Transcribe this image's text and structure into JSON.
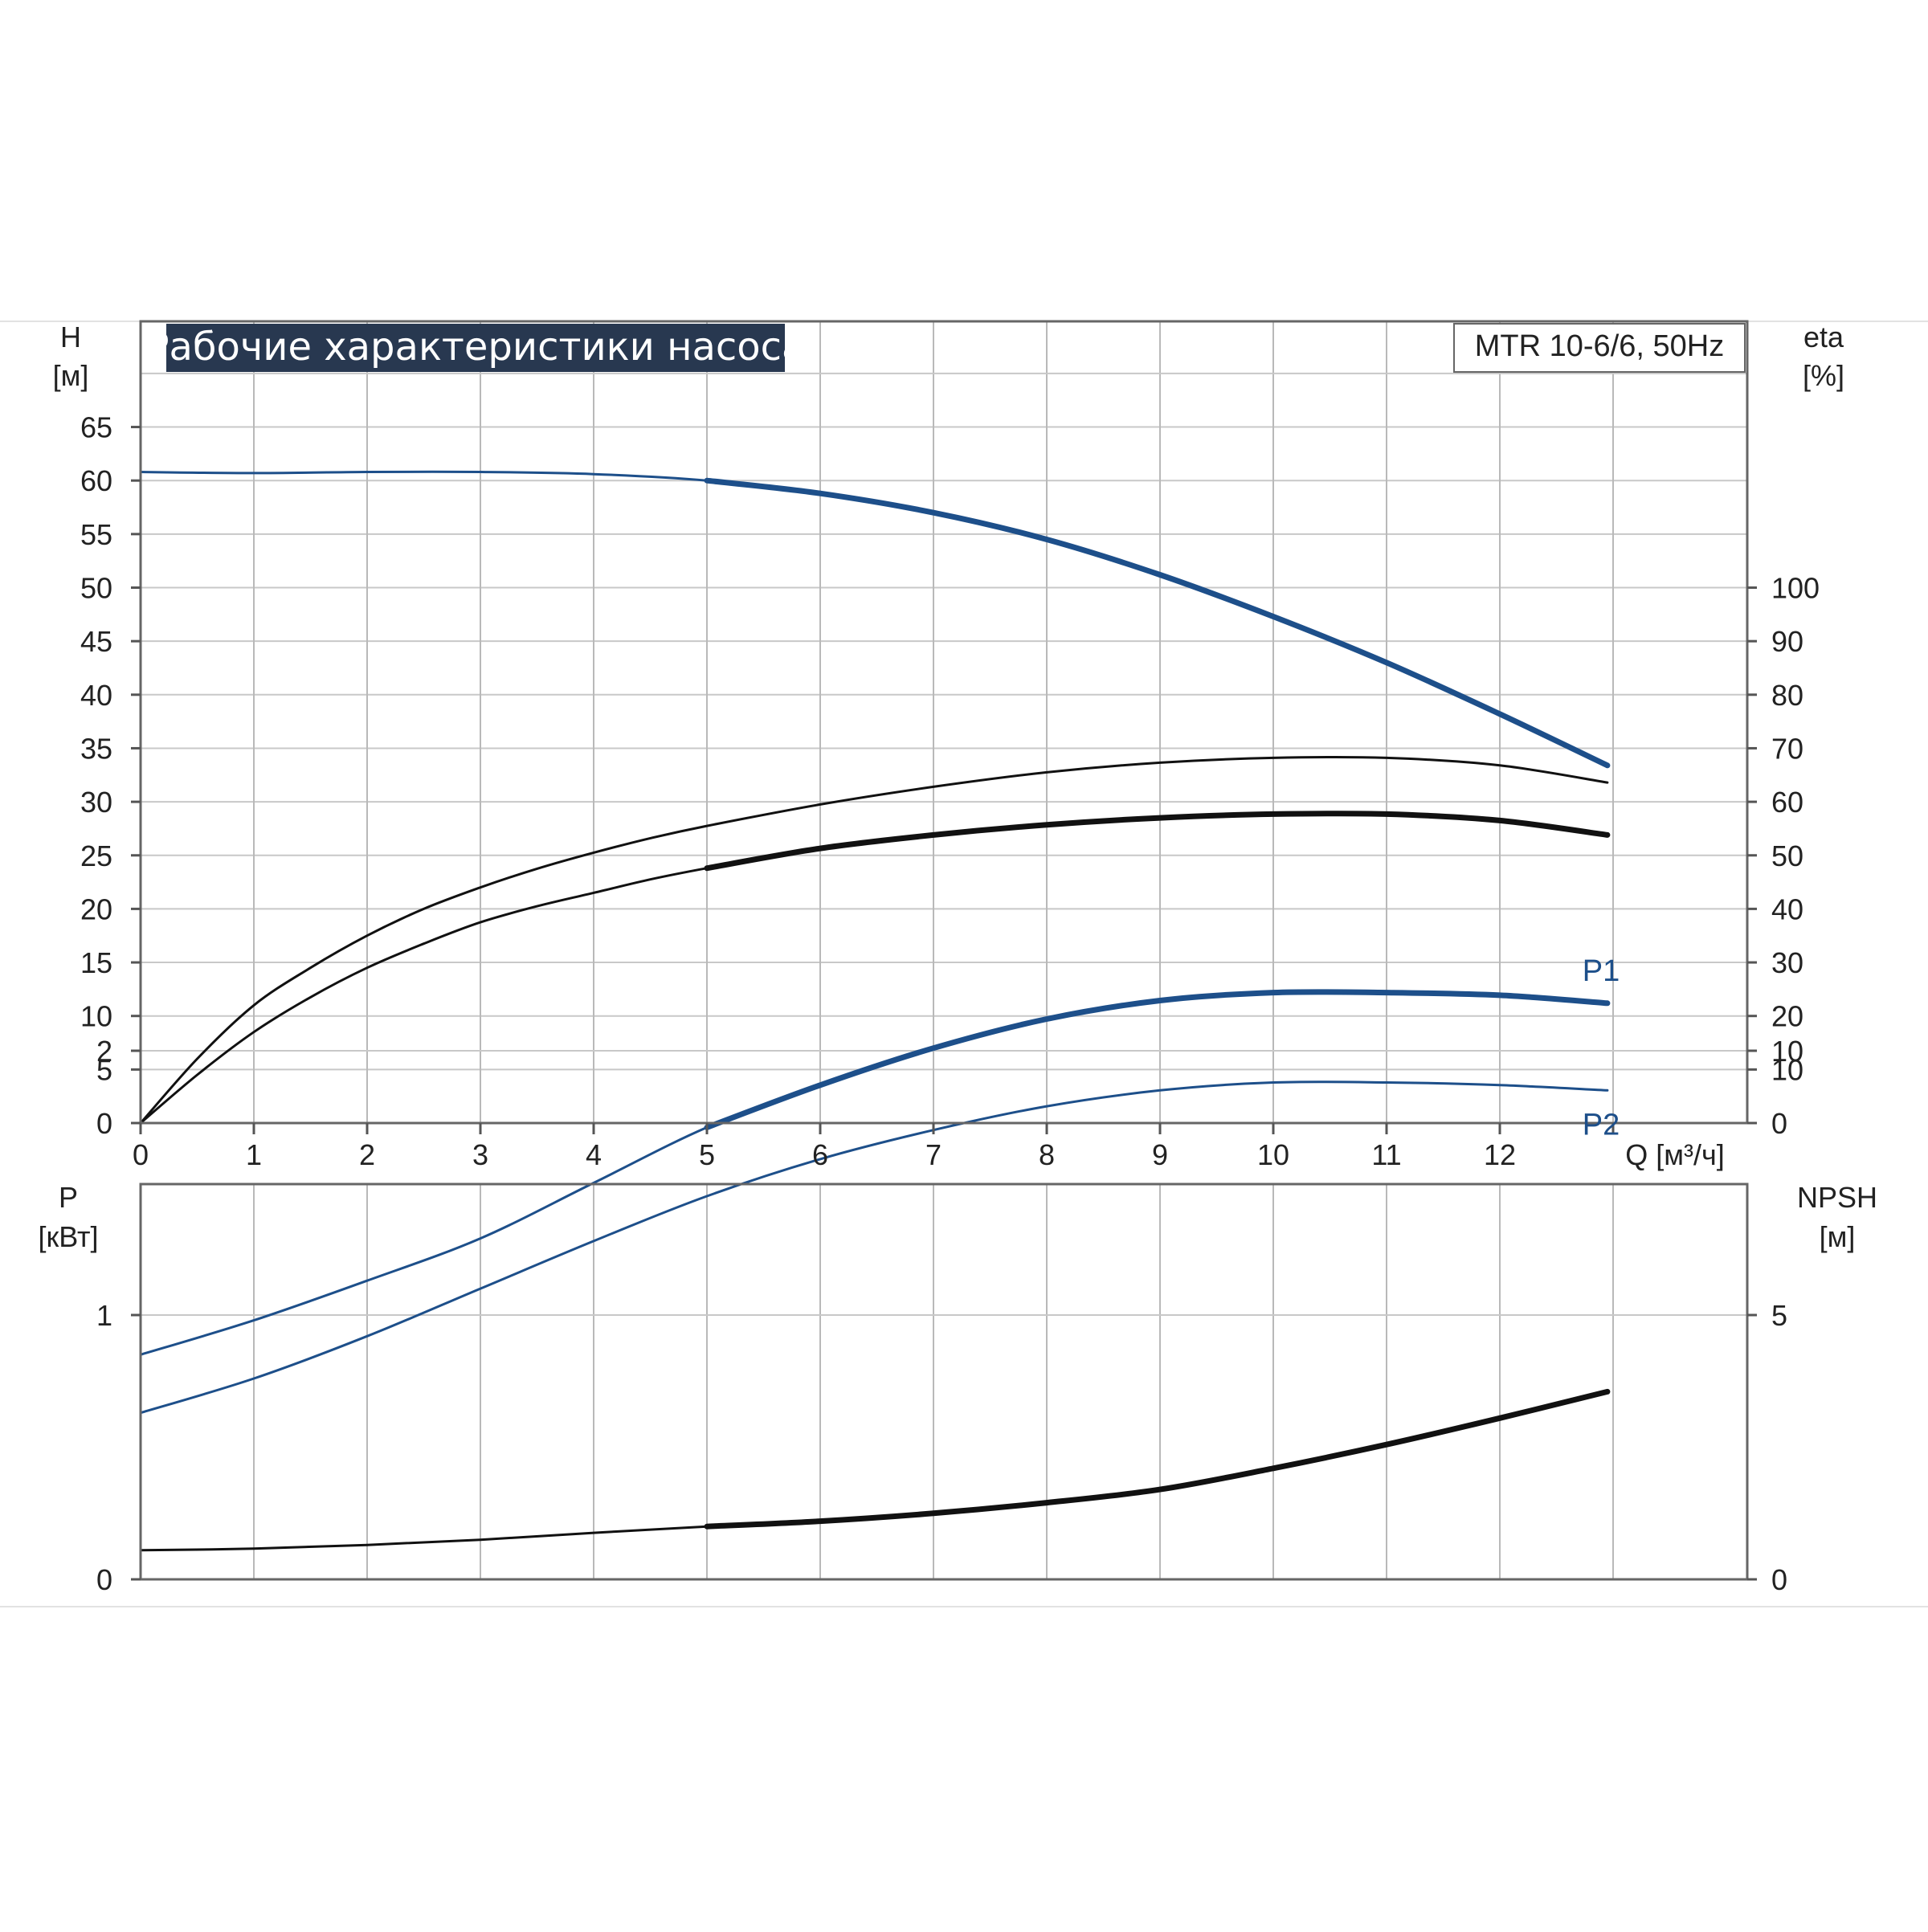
{
  "chart_data": [
    {
      "type": "line",
      "title": "Рабочие характеристики насоса",
      "model": "MTR 10-6/6, 50Hz",
      "x_axis": {
        "label": "Q [м³/ч]",
        "range": [
          0,
          13
        ],
        "ticks": [
          "0",
          "1",
          "2",
          "3",
          "4",
          "5",
          "6",
          "7",
          "8",
          "9",
          "10",
          "11",
          "12"
        ]
      },
      "y_axis_left": {
        "label": "H",
        "unit": "[м]",
        "range": [
          0,
          65
        ],
        "ticks": [
          "0",
          "5",
          "10",
          "15",
          "20",
          "25",
          "30",
          "35",
          "40",
          "45",
          "50",
          "55",
          "60",
          "65"
        ]
      },
      "y_axis_right": {
        "label": "eta",
        "unit": "[%]",
        "range": [
          0,
          130
        ],
        "ticks": [
          "0",
          "10",
          "20",
          "30",
          "40",
          "50",
          "60",
          "70",
          "80",
          "90",
          "100"
        ]
      },
      "grid": true,
      "series": [
        {
          "axis": "left",
          "color": "#1d4f8a",
          "thick_from": 5,
          "x": [
            0,
            1,
            2,
            3,
            4,
            5,
            6,
            7,
            8,
            9,
            10,
            11,
            12,
            12.95
          ],
          "values": [
            60.8,
            60.7,
            60.8,
            60.8,
            60.6,
            60.0,
            58.8,
            57.0,
            54.5,
            51.2,
            47.3,
            43.0,
            38.2,
            33.4
          ]
        },
        {
          "axis": "right",
          "color": "#111111",
          "thick_from": 13,
          "x": [
            0,
            0.5,
            1,
            1.5,
            2,
            2.5,
            3,
            3.5,
            4,
            4.5,
            5,
            6,
            7,
            8,
            9,
            10,
            11,
            12,
            12.95
          ],
          "values": [
            0,
            12,
            22,
            29,
            35,
            40,
            44,
            47.5,
            50.5,
            53.2,
            55.5,
            59.5,
            62.8,
            65.5,
            67.3,
            68.2,
            68.2,
            66.8,
            63.6
          ]
        },
        {
          "axis": "right",
          "color": "#111111",
          "thick_from": 5,
          "x": [
            0,
            0.5,
            1,
            1.5,
            2,
            2.5,
            3,
            3.5,
            4,
            4.5,
            5,
            6,
            7,
            8,
            9,
            10,
            11,
            12,
            12.95
          ],
          "values": [
            0,
            9,
            17,
            23.5,
            29,
            33.5,
            37.5,
            40.5,
            43,
            45.5,
            47.6,
            51.3,
            53.8,
            55.7,
            57.0,
            57.7,
            57.7,
            56.5,
            53.8
          ]
        }
      ]
    },
    {
      "type": "line",
      "x_axis": {
        "range": [
          0,
          13
        ]
      },
      "y_axis_left": {
        "label": "P",
        "unit": "[кВт]",
        "range": [
          0,
          3
        ],
        "ticks": [
          "0",
          "1",
          "2"
        ]
      },
      "y_axis_right": {
        "label": "NPSH",
        "unit": "[м]",
        "range": [
          0,
          15
        ],
        "ticks": [
          "0",
          "5",
          "10"
        ]
      },
      "grid": true,
      "series": [
        {
          "name": "P1",
          "axis": "left",
          "color": "#1d4f8a",
          "thick_from": 5,
          "x": [
            0,
            1,
            2,
            3,
            4,
            5,
            6,
            7,
            8,
            9,
            10,
            11,
            12,
            12.95
          ],
          "values": [
            0.85,
            0.98,
            1.13,
            1.29,
            1.5,
            1.71,
            1.87,
            2.01,
            2.12,
            2.19,
            2.22,
            2.22,
            2.21,
            2.18
          ]
        },
        {
          "name": "P2",
          "axis": "left",
          "color": "#1d4f8a",
          "thick_from": 13,
          "x": [
            0,
            1,
            2,
            3,
            4,
            5,
            6,
            7,
            8,
            9,
            10,
            11,
            12,
            12.95
          ],
          "values": [
            0.63,
            0.76,
            0.92,
            1.1,
            1.28,
            1.45,
            1.59,
            1.7,
            1.79,
            1.85,
            1.88,
            1.88,
            1.87,
            1.85
          ]
        },
        {
          "axis": "right",
          "color": "#111111",
          "thick_from": 5,
          "x": [
            0,
            1,
            2,
            3,
            4,
            5,
            6,
            7,
            8,
            9,
            10,
            11,
            12,
            12.95
          ],
          "values": [
            0.55,
            0.58,
            0.65,
            0.75,
            0.88,
            1.0,
            1.1,
            1.25,
            1.45,
            1.7,
            2.1,
            2.55,
            3.05,
            3.55
          ]
        }
      ]
    }
  ]
}
